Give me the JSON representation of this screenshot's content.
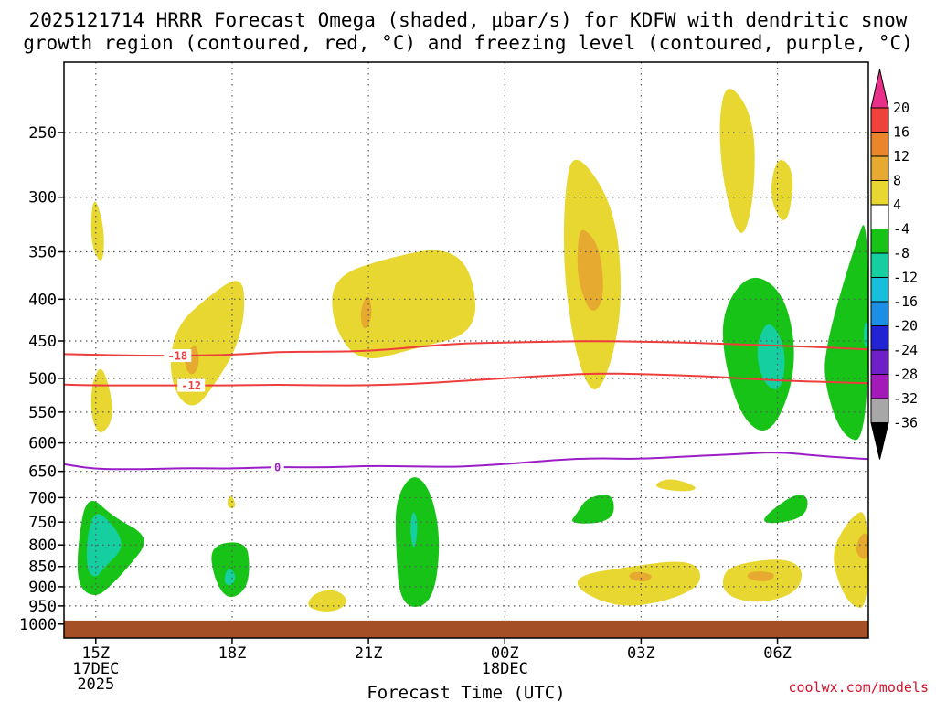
{
  "chart_data": {
    "type": "contour",
    "title_lines": [
      "2025121714 HRRR Forecast Omega (shaded, μbar/s) for KDFW with dendritic snow",
      "growth region (contoured, red, °C) and freezing level (contoured, purple, °C)"
    ],
    "xlabel": "Forecast Time (UTC)",
    "credit": "coolwx.com/models",
    "xlim": [
      14.3,
      32.0
    ],
    "ylim": [
      1040,
      205
    ],
    "x_ticks": [
      {
        "value": 15,
        "lines": [
          "15Z",
          "17DEC",
          "2025"
        ]
      },
      {
        "value": 18,
        "lines": [
          "18Z"
        ]
      },
      {
        "value": 21,
        "lines": [
          "21Z"
        ]
      },
      {
        "value": 24,
        "lines": [
          "00Z",
          "18DEC"
        ]
      },
      {
        "value": 27,
        "lines": [
          "03Z"
        ]
      },
      {
        "value": 30,
        "lines": [
          "06Z"
        ]
      }
    ],
    "y_ticks": [
      250,
      300,
      350,
      400,
      450,
      500,
      550,
      600,
      650,
      700,
      750,
      800,
      850,
      900,
      950,
      1000
    ],
    "colorbar": {
      "levels": [
        20,
        16,
        12,
        8,
        4,
        -4,
        -8,
        -12,
        -16,
        -20,
        -24,
        -28,
        -32,
        -36
      ],
      "colors": [
        "#e8308a",
        "#f0413a",
        "#eb852b",
        "#e5aa2f",
        "#e8d730",
        "#ffffff",
        "#18c318",
        "#16cfa0",
        "#17bfdc",
        "#1b8fe6",
        "#2323d6",
        "#6f1fc8",
        "#a31ab8",
        "#a7a7a7",
        "#000000"
      ]
    },
    "ground": {
      "color": "#a44f26",
      "top_hpa": 990
    },
    "dendritic_contours": [
      {
        "label": "-18",
        "label_x": 16.8,
        "points": [
          [
            14.3,
            467
          ],
          [
            15,
            468
          ],
          [
            16,
            469
          ],
          [
            17,
            469
          ],
          [
            18,
            468
          ],
          [
            19,
            464
          ],
          [
            20,
            464
          ],
          [
            21,
            463
          ],
          [
            22,
            458
          ],
          [
            23,
            453
          ],
          [
            24,
            452
          ],
          [
            25,
            451
          ],
          [
            26,
            450
          ],
          [
            27,
            451
          ],
          [
            28,
            452
          ],
          [
            29,
            454
          ],
          [
            30,
            456
          ],
          [
            31,
            458
          ],
          [
            32,
            461
          ]
        ]
      },
      {
        "label": "-12",
        "label_x": 17.1,
        "points": [
          [
            14.3,
            509
          ],
          [
            15,
            510
          ],
          [
            16,
            510
          ],
          [
            17,
            510
          ],
          [
            18,
            510
          ],
          [
            19,
            509
          ],
          [
            20,
            510
          ],
          [
            21,
            510
          ],
          [
            22,
            508
          ],
          [
            23,
            504
          ],
          [
            24,
            500
          ],
          [
            25,
            496
          ],
          [
            26,
            493
          ],
          [
            27,
            494
          ],
          [
            28,
            496
          ],
          [
            29,
            499
          ],
          [
            30,
            503
          ],
          [
            31,
            505
          ],
          [
            32,
            507
          ]
        ]
      }
    ],
    "freezing_contour": {
      "label": "0",
      "label_x": 19.0,
      "points": [
        [
          14.3,
          637
        ],
        [
          15,
          646
        ],
        [
          16,
          646
        ],
        [
          17,
          644
        ],
        [
          18,
          645
        ],
        [
          19,
          642
        ],
        [
          20,
          643
        ],
        [
          21,
          640
        ],
        [
          22,
          641
        ],
        [
          23,
          642
        ],
        [
          24,
          637
        ],
        [
          25,
          630
        ],
        [
          26,
          626
        ],
        [
          27,
          628
        ],
        [
          28,
          623
        ],
        [
          29,
          620
        ],
        [
          30,
          615
        ],
        [
          31,
          623
        ],
        [
          32,
          628
        ]
      ]
    },
    "omega_regions": [
      {
        "value": 4,
        "color": "#e8d730",
        "points": [
          [
            15.0,
            300
          ],
          [
            15.2,
            330
          ],
          [
            15.15,
            365
          ],
          [
            14.9,
            345
          ],
          [
            14.9,
            310
          ]
        ]
      },
      {
        "value": 4,
        "color": "#e8d730",
        "points": [
          [
            15.1,
            480
          ],
          [
            15.3,
            510
          ],
          [
            15.4,
            560
          ],
          [
            15.1,
            590
          ],
          [
            14.9,
            560
          ],
          [
            14.9,
            510
          ]
        ]
      },
      {
        "value": 4,
        "color": "#e8d730",
        "points": [
          [
            17.4,
            400
          ],
          [
            18.2,
            372
          ],
          [
            18.3,
            410
          ],
          [
            18.1,
            460
          ],
          [
            17.6,
            510
          ],
          [
            17.2,
            545
          ],
          [
            16.8,
            530
          ],
          [
            16.6,
            480
          ],
          [
            16.8,
            430
          ]
        ]
      },
      {
        "value": 4,
        "color": "#e8d730",
        "points": [
          [
            18.0,
            695
          ],
          [
            18.1,
            720
          ],
          [
            17.9,
            722
          ],
          [
            17.9,
            700
          ]
        ]
      },
      {
        "value": 4,
        "color": "#e8d730",
        "points": [
          [
            20.2,
            375
          ],
          [
            21.5,
            355
          ],
          [
            22.7,
            345
          ],
          [
            23.3,
            370
          ],
          [
            23.4,
            440
          ],
          [
            22.0,
            460
          ],
          [
            20.8,
            480
          ],
          [
            20.2,
            430
          ]
        ]
      },
      {
        "value": 4,
        "color": "#e8d730",
        "points": [
          [
            19.8,
            915
          ],
          [
            20.3,
            905
          ],
          [
            20.6,
            940
          ],
          [
            20.2,
            970
          ],
          [
            19.6,
            955
          ]
        ]
      },
      {
        "value": 4,
        "color": "#e8d730",
        "points": [
          [
            25.5,
            260
          ],
          [
            26.4,
            305
          ],
          [
            26.6,
            390
          ],
          [
            26.4,
            470
          ],
          [
            26.0,
            530
          ],
          [
            25.6,
            480
          ],
          [
            25.3,
            380
          ],
          [
            25.3,
            300
          ]
        ]
      },
      {
        "value": 4,
        "color": "#e8d730",
        "points": [
          [
            28.9,
            215
          ],
          [
            29.5,
            240
          ],
          [
            29.5,
            300
          ],
          [
            29.2,
            345
          ],
          [
            28.8,
            290
          ],
          [
            28.7,
            240
          ]
        ]
      },
      {
        "value": 4,
        "color": "#e8d730",
        "points": [
          [
            30.0,
            265
          ],
          [
            30.4,
            280
          ],
          [
            30.2,
            330
          ],
          [
            29.8,
            300
          ]
        ]
      },
      {
        "value": 4,
        "color": "#e8d730",
        "points": [
          [
            27.6,
            660
          ],
          [
            28.3,
            680
          ],
          [
            28.0,
            690
          ],
          [
            27.2,
            680
          ]
        ]
      },
      {
        "value": 4,
        "color": "#e8d730",
        "points": [
          [
            25.6,
            870
          ],
          [
            26.8,
            850
          ],
          [
            27.8,
            835
          ],
          [
            28.3,
            850
          ],
          [
            28.3,
            900
          ],
          [
            27.5,
            940
          ],
          [
            26.5,
            955
          ],
          [
            25.6,
            910
          ]
        ]
      },
      {
        "value": 4,
        "color": "#e8d730",
        "points": [
          [
            29.3,
            840
          ],
          [
            30.2,
            830
          ],
          [
            30.6,
            860
          ],
          [
            30.4,
            920
          ],
          [
            29.5,
            945
          ],
          [
            28.8,
            920
          ],
          [
            28.8,
            860
          ]
        ]
      },
      {
        "value": 4,
        "color": "#e8d730",
        "points": [
          [
            31.6,
            740
          ],
          [
            32.0,
            720
          ],
          [
            32.0,
            960
          ],
          [
            31.6,
            950
          ],
          [
            31.3,
            880
          ],
          [
            31.2,
            810
          ]
        ]
      },
      {
        "value": 8,
        "color": "#e5aa2f",
        "points": [
          [
            25.7,
            325
          ],
          [
            26.1,
            345
          ],
          [
            26.2,
            400
          ],
          [
            25.9,
            420
          ],
          [
            25.6,
            380
          ],
          [
            25.6,
            340
          ]
        ]
      },
      {
        "value": 8,
        "color": "#e5aa2f",
        "points": [
          [
            21.0,
            390
          ],
          [
            21.1,
            420
          ],
          [
            20.9,
            440
          ],
          [
            20.8,
            415
          ]
        ]
      },
      {
        "value": 8,
        "color": "#e5aa2f",
        "points": [
          [
            17.2,
            450
          ],
          [
            17.3,
            480
          ],
          [
            17.1,
            500
          ],
          [
            16.9,
            475
          ]
        ]
      },
      {
        "value": 8,
        "color": "#e5aa2f",
        "points": [
          [
            26.8,
            860
          ],
          [
            27.3,
            870
          ],
          [
            27.1,
            890
          ],
          [
            26.7,
            880
          ]
        ]
      },
      {
        "value": 8,
        "color": "#e5aa2f",
        "points": [
          [
            29.4,
            860
          ],
          [
            30.0,
            865
          ],
          [
            29.8,
            890
          ],
          [
            29.3,
            880
          ]
        ]
      },
      {
        "value": 8,
        "color": "#e5aa2f",
        "points": [
          [
            31.8,
            780
          ],
          [
            32.0,
            770
          ],
          [
            32.0,
            840
          ],
          [
            31.7,
            820
          ]
        ]
      },
      {
        "value": -4,
        "color": "#18c318",
        "points": [
          [
            14.8,
            690
          ],
          [
            15.4,
            740
          ],
          [
            16.0,
            770
          ],
          [
            16.1,
            800
          ],
          [
            15.8,
            840
          ],
          [
            15.4,
            890
          ],
          [
            15.0,
            930
          ],
          [
            14.6,
            900
          ],
          [
            14.6,
            800
          ]
        ]
      },
      {
        "value": -4,
        "color": "#18c318",
        "points": [
          [
            17.5,
            800
          ],
          [
            18.3,
            790
          ],
          [
            18.4,
            850
          ],
          [
            18.3,
            910
          ],
          [
            17.9,
            935
          ],
          [
            17.6,
            880
          ]
        ]
      },
      {
        "value": -4,
        "color": "#18c318",
        "points": [
          [
            22.0,
            650
          ],
          [
            22.4,
            690
          ],
          [
            22.6,
            800
          ],
          [
            22.4,
            950
          ],
          [
            21.7,
            955
          ],
          [
            21.6,
            800
          ],
          [
            21.6,
            700
          ]
        ]
      },
      {
        "value": -4,
        "color": "#18c318",
        "points": [
          [
            25.8,
            700
          ],
          [
            26.4,
            690
          ],
          [
            26.4,
            750
          ],
          [
            25.4,
            755
          ],
          [
            25.6,
            730
          ]
        ]
      },
      {
        "value": -4,
        "color": "#18c318",
        "points": [
          [
            29.4,
            370
          ],
          [
            30.1,
            390
          ],
          [
            30.4,
            450
          ],
          [
            30.3,
            520
          ],
          [
            29.8,
            590
          ],
          [
            29.2,
            560
          ],
          [
            28.8,
            470
          ],
          [
            28.8,
            410
          ]
        ]
      },
      {
        "value": -4,
        "color": "#18c318",
        "points": [
          [
            30.4,
            690
          ],
          [
            30.7,
            700
          ],
          [
            30.6,
            740
          ],
          [
            29.9,
            755
          ],
          [
            29.6,
            745
          ]
        ]
      },
      {
        "value": -4,
        "color": "#18c318",
        "points": [
          [
            31.7,
            345
          ],
          [
            32.0,
            310
          ],
          [
            32.0,
            600
          ],
          [
            31.4,
            590
          ],
          [
            31.0,
            500
          ],
          [
            31.1,
            450
          ],
          [
            31.4,
            390
          ]
        ]
      },
      {
        "value": -8,
        "color": "#16cfa0",
        "points": [
          [
            15.0,
            720
          ],
          [
            15.5,
            770
          ],
          [
            15.6,
            810
          ],
          [
            15.2,
            850
          ],
          [
            15.0,
            880
          ],
          [
            14.8,
            860
          ],
          [
            14.8,
            780
          ]
        ]
      },
      {
        "value": -8,
        "color": "#16cfa0",
        "points": [
          [
            17.9,
            850
          ],
          [
            18.1,
            870
          ],
          [
            18.0,
            900
          ],
          [
            17.8,
            890
          ]
        ]
      },
      {
        "value": -8,
        "color": "#16cfa0",
        "points": [
          [
            22.0,
            720
          ],
          [
            22.1,
            760
          ],
          [
            22.0,
            820
          ],
          [
            21.9,
            760
          ]
        ]
      },
      {
        "value": -8,
        "color": "#16cfa0",
        "points": [
          [
            29.8,
            420
          ],
          [
            30.2,
            460
          ],
          [
            30.1,
            520
          ],
          [
            29.7,
            510
          ],
          [
            29.5,
            460
          ]
        ]
      },
      {
        "value": -8,
        "color": "#16cfa0",
        "points": [
          [
            31.9,
            430
          ],
          [
            32.0,
            425
          ],
          [
            32.0,
            460
          ],
          [
            31.9,
            455
          ]
        ]
      }
    ]
  }
}
